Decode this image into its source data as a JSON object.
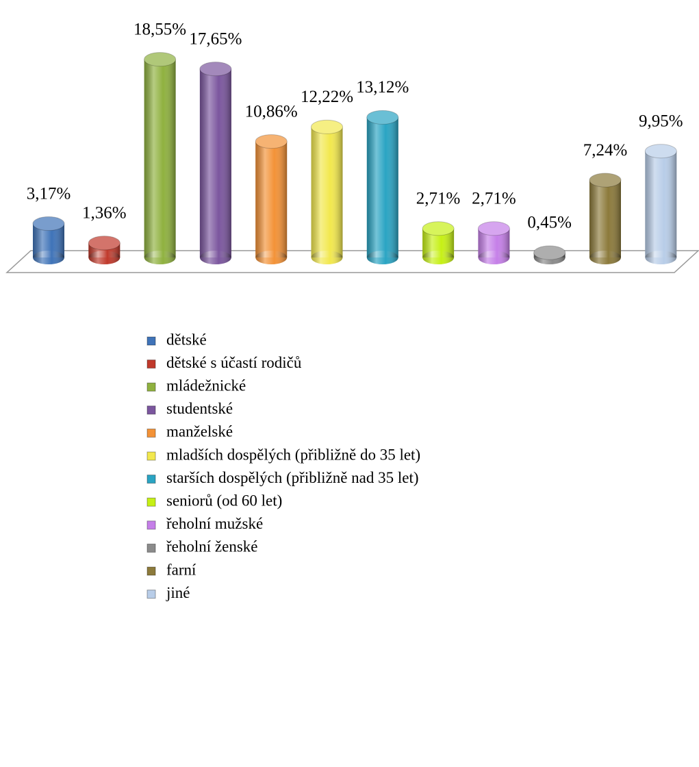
{
  "chart_data": {
    "type": "bar",
    "categories": [
      "dětské",
      "dětské s účastí rodičů",
      "mládežnické",
      "studentské",
      "manželské",
      "mladších dospělých (přibližně do 35 let)",
      "starších dospělých (přibližně nad 35 let)",
      "seniorů (od 60 let)",
      "řeholní mužské",
      "řeholní ženské",
      "farní",
      "jiné"
    ],
    "values": [
      3.17,
      1.36,
      18.55,
      17.65,
      10.86,
      12.22,
      13.12,
      2.71,
      2.71,
      0.45,
      7.24,
      9.95
    ],
    "value_labels": [
      "3,17%",
      "1,36%",
      "18,55%",
      "17,65%",
      "10,86%",
      "12,22%",
      "13,12%",
      "2,71%",
      "2,71%",
      "0,45%",
      "7,24%",
      "9,95%"
    ],
    "colors": [
      "#3f73b8",
      "#c0392b",
      "#8fb13f",
      "#7b569e",
      "#f39237",
      "#f2e84e",
      "#2aa4c3",
      "#c6f015",
      "#c57fe8",
      "#8b8b8b",
      "#8c7a3b",
      "#b8cde8"
    ],
    "legend": "bottom"
  }
}
